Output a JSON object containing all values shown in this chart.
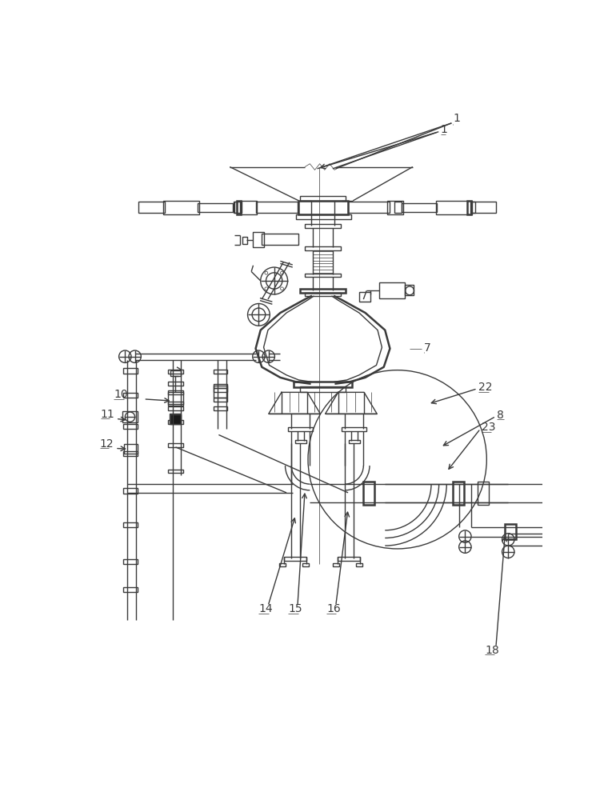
{
  "bg_color": "#ffffff",
  "lc": "#3a3a3a",
  "lw": 1.0,
  "tlw": 0.5,
  "thw": 1.8
}
